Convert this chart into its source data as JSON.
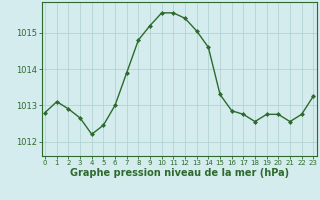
{
  "x": [
    0,
    1,
    2,
    3,
    4,
    5,
    6,
    7,
    8,
    9,
    10,
    11,
    12,
    13,
    14,
    15,
    16,
    17,
    18,
    19,
    20,
    21,
    22,
    23
  ],
  "y": [
    1012.8,
    1013.1,
    1012.9,
    1012.65,
    1012.2,
    1012.45,
    1013.0,
    1013.9,
    1014.8,
    1015.2,
    1015.55,
    1015.55,
    1015.4,
    1015.05,
    1014.6,
    1013.3,
    1012.85,
    1012.75,
    1012.55,
    1012.75,
    1012.75,
    1012.55,
    1012.75,
    1013.25
  ],
  "line_color": "#2d6a2d",
  "marker": "D",
  "marker_size": 2.0,
  "bg_color": "#d4ecee",
  "grid_color": "#b0cece",
  "border_color": "#2d6a2d",
  "xlabel": "Graphe pression niveau de la mer (hPa)",
  "xlabel_fontsize": 7.0,
  "ytick_fontsize": 6.0,
  "xtick_fontsize": 5.0,
  "yticks": [
    1012,
    1013,
    1014,
    1015
  ],
  "xticks": [
    0,
    1,
    2,
    3,
    4,
    5,
    6,
    7,
    8,
    9,
    10,
    11,
    12,
    13,
    14,
    15,
    16,
    17,
    18,
    19,
    20,
    21,
    22,
    23
  ],
  "ylim": [
    1011.6,
    1015.85
  ],
  "xlim": [
    -0.3,
    23.3
  ],
  "linewidth": 1.0
}
